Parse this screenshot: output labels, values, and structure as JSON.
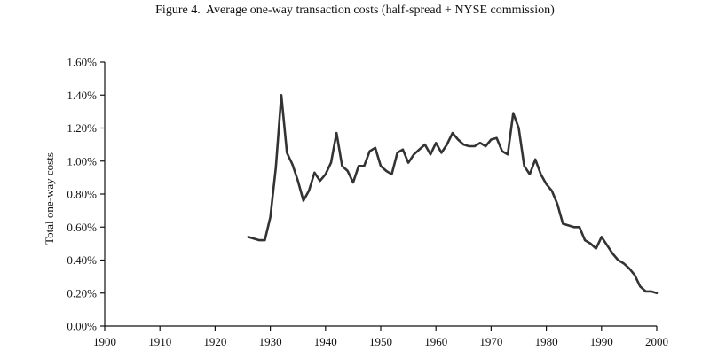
{
  "figure_title": "Figure 4.  Average one-way transaction costs (half-spread + NYSE commission)",
  "chart_data": {
    "type": "line",
    "title": "Figure 4.  Average one-way transaction costs (half-spread + NYSE commission)",
    "xlabel": "",
    "ylabel": "Total one-way costs",
    "xlim": [
      1900,
      2000
    ],
    "ylim": [
      0.0,
      1.6
    ],
    "x_ticks": [
      1900,
      1910,
      1920,
      1930,
      1940,
      1950,
      1960,
      1970,
      1980,
      1990,
      2000
    ],
    "x_tick_labels": [
      "1900",
      "1910",
      "1920",
      "1930",
      "1940",
      "1950",
      "1960",
      "1970",
      "1980",
      "1990",
      "2000"
    ],
    "y_ticks": [
      0.0,
      0.2,
      0.4,
      0.6,
      0.8,
      1.0,
      1.2,
      1.4,
      1.6
    ],
    "y_tick_labels": [
      "0.00%",
      "0.20%",
      "0.40%",
      "0.60%",
      "0.80%",
      "1.00%",
      "1.20%",
      "1.40%",
      "1.60%"
    ],
    "grid": false,
    "line_color": "#333333",
    "axis_color": "#111111",
    "series": [
      {
        "x": [
          1926,
          1927,
          1928,
          1929,
          1930,
          1931,
          1932,
          1933,
          1934,
          1935,
          1936,
          1937,
          1938,
          1939,
          1940,
          1941,
          1942,
          1943,
          1944,
          1945,
          1946,
          1947,
          1948,
          1949,
          1950,
          1951,
          1952,
          1953,
          1954,
          1955,
          1956,
          1957,
          1958,
          1959,
          1960,
          1961,
          1962,
          1963,
          1964,
          1965,
          1966,
          1967,
          1968,
          1969,
          1970,
          1971,
          1972,
          1973,
          1974,
          1975,
          1976,
          1977,
          1978,
          1979,
          1980,
          1981,
          1982,
          1983,
          1984,
          1985,
          1986,
          1987,
          1988,
          1989,
          1990,
          1991,
          1992,
          1993,
          1994,
          1995,
          1996,
          1997,
          1998,
          1999,
          2000
        ],
        "y": [
          0.54,
          0.53,
          0.52,
          0.52,
          0.66,
          0.96,
          1.4,
          1.05,
          0.98,
          0.88,
          0.76,
          0.82,
          0.93,
          0.88,
          0.92,
          0.99,
          1.17,
          0.97,
          0.94,
          0.87,
          0.97,
          0.97,
          1.06,
          1.08,
          0.97,
          0.94,
          0.92,
          1.05,
          1.07,
          0.99,
          1.04,
          1.07,
          1.1,
          1.04,
          1.11,
          1.05,
          1.1,
          1.17,
          1.13,
          1.1,
          1.09,
          1.09,
          1.11,
          1.09,
          1.13,
          1.14,
          1.06,
          1.04,
          1.29,
          1.2,
          0.97,
          0.92,
          1.01,
          0.92,
          0.86,
          0.82,
          0.74,
          0.62,
          0.61,
          0.6,
          0.6,
          0.52,
          0.5,
          0.47,
          0.54,
          0.49,
          0.44,
          0.4,
          0.38,
          0.35,
          0.31,
          0.24,
          0.21,
          0.21,
          0.2
        ]
      }
    ]
  }
}
